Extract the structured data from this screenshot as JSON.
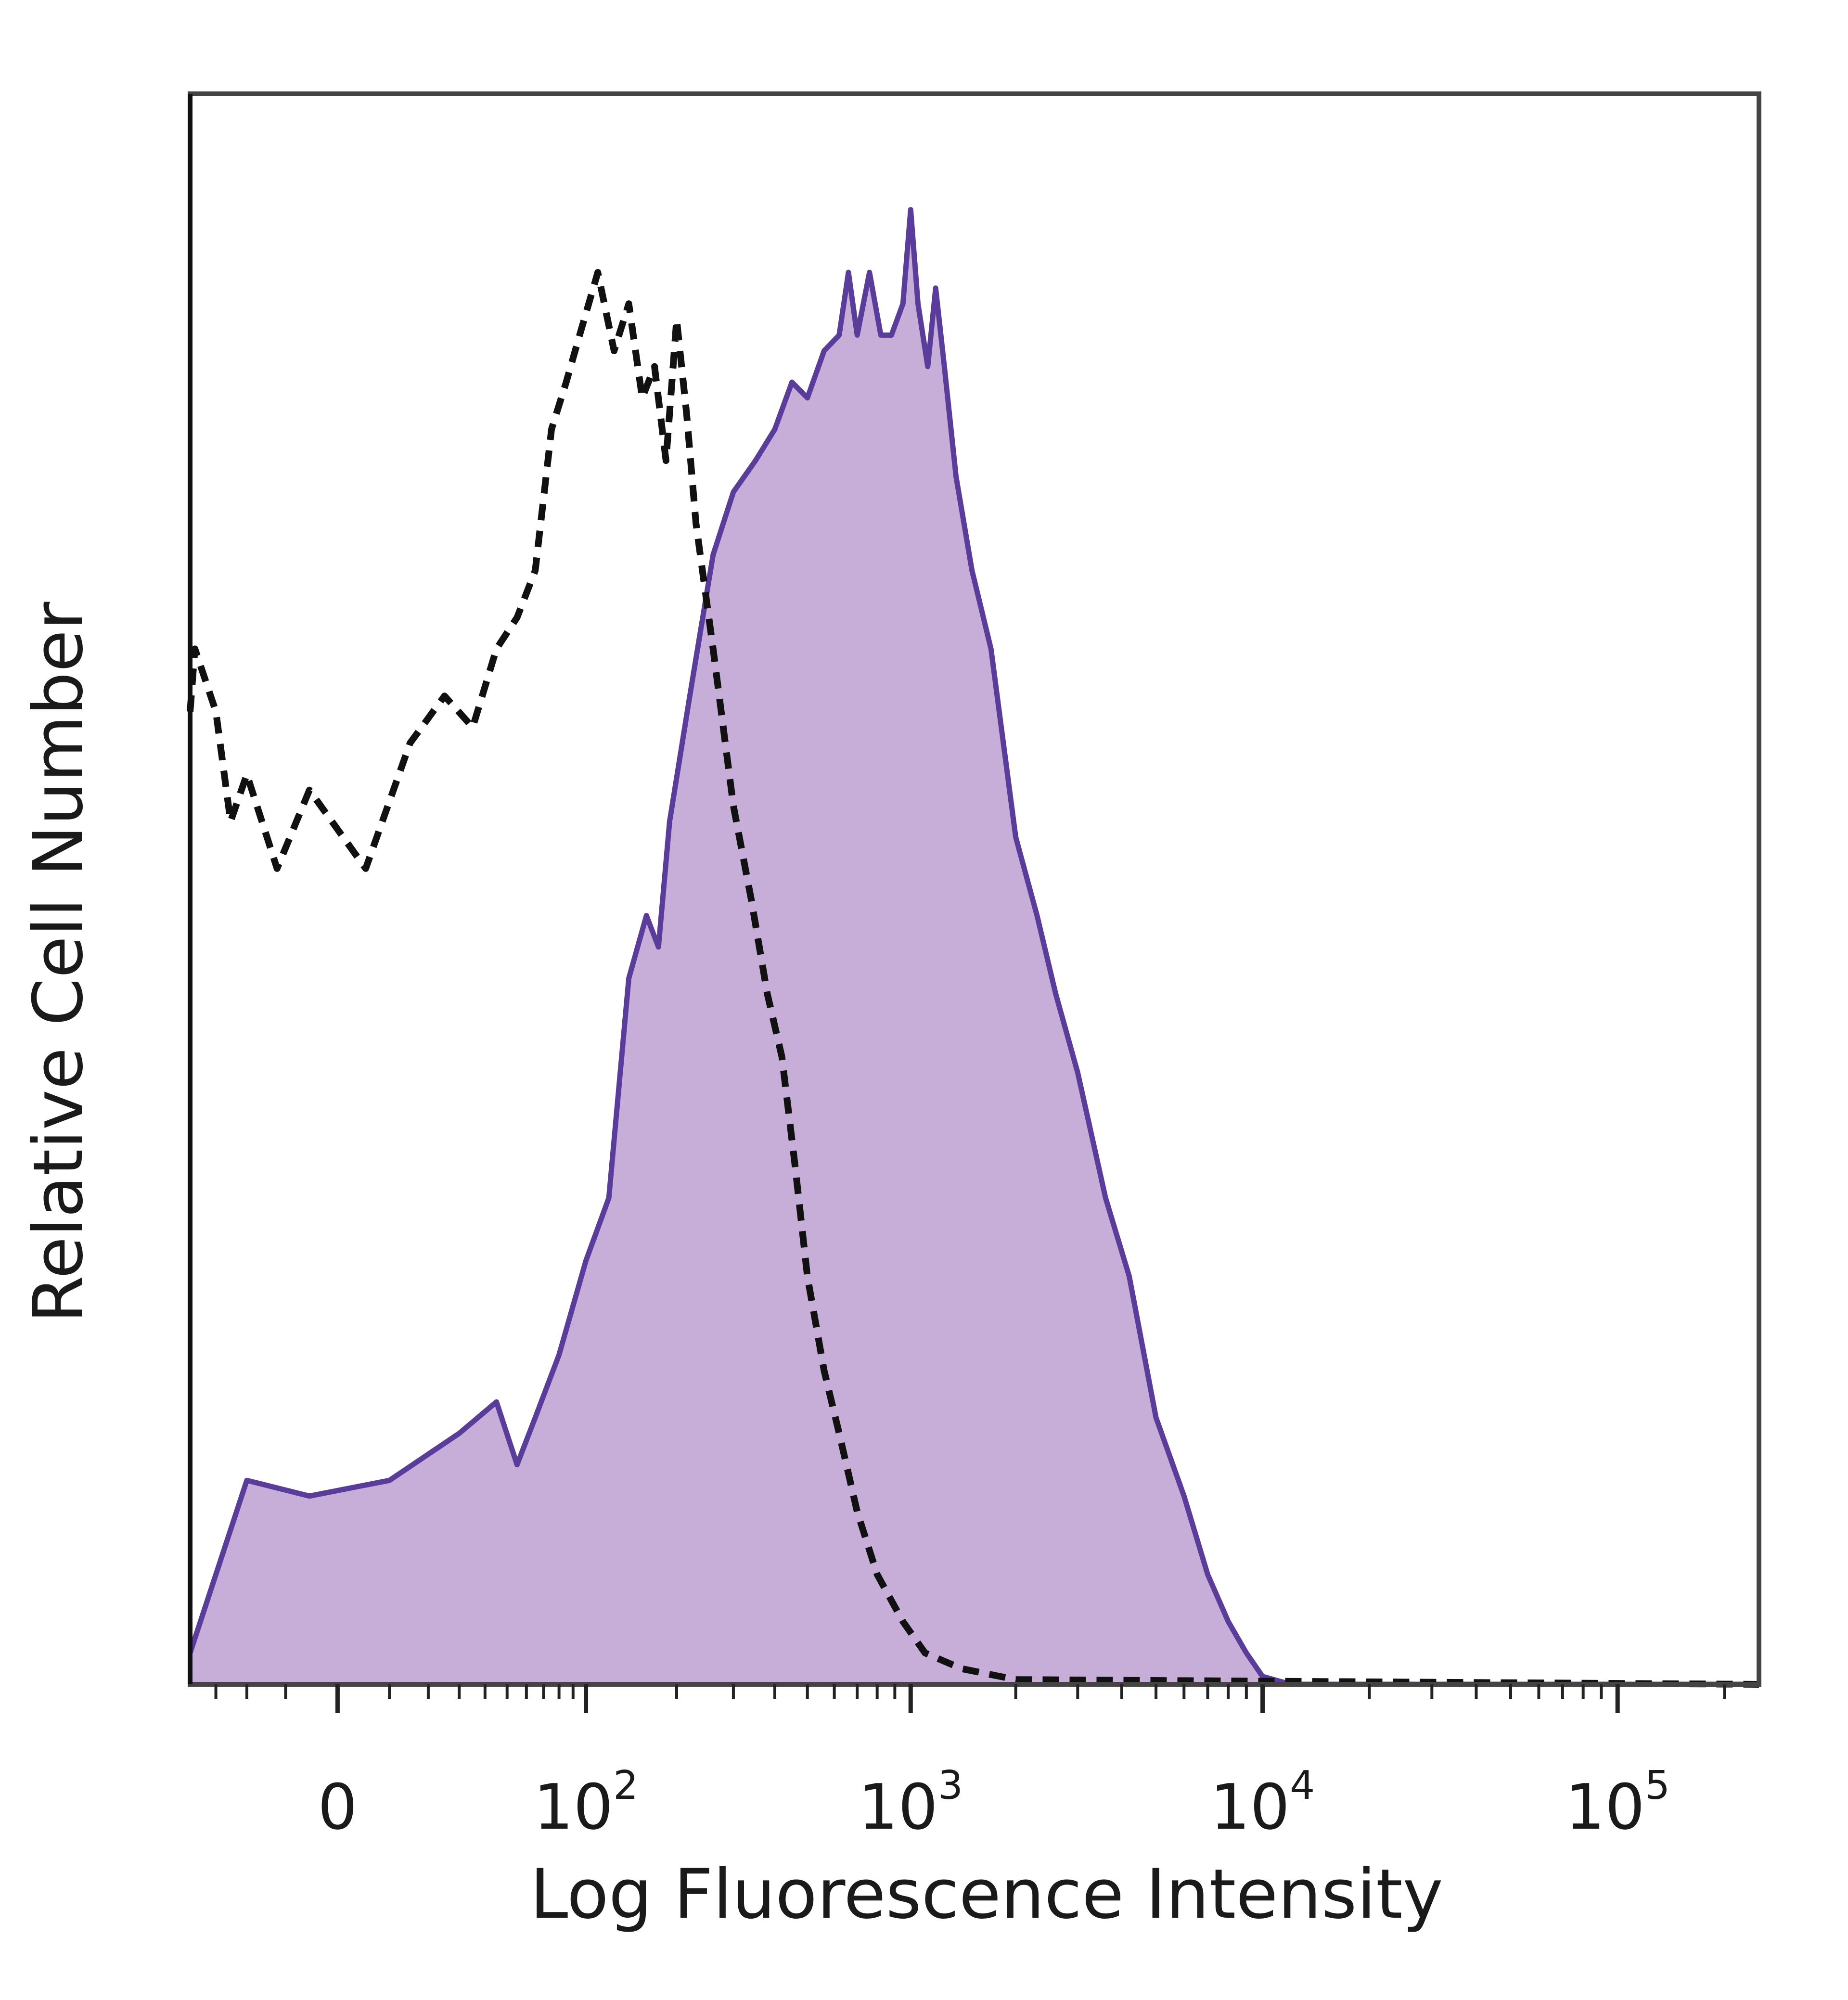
{
  "chart_data": {
    "type": "area",
    "title": "",
    "xlabel": "Log Fluorescence Intensity",
    "ylabel": "Relative Cell Number",
    "x_scale": "biexponential",
    "x_ticks": [
      {
        "value": 0,
        "label": "0"
      },
      {
        "value": 100,
        "label": "10",
        "exp": "2"
      },
      {
        "value": 1000,
        "label": "10",
        "exp": "3"
      },
      {
        "value": 10000,
        "label": "10",
        "exp": "4"
      },
      {
        "value": 100000,
        "label": "10",
        "exp": "5"
      }
    ],
    "xlim": [
      -40,
      250000
    ],
    "ylim": [
      0,
      100
    ],
    "y_tick_labels": false,
    "grid": false,
    "colors": {
      "stained_fill": "#c6aed9",
      "stained_line": "#5a3d9a",
      "control_line": "#111111",
      "frame": "#444444"
    },
    "series": [
      {
        "style": "filled-solid",
        "points": [
          [
            -40,
            2
          ],
          [
            -20,
            13
          ],
          [
            -5,
            12
          ],
          [
            10,
            13
          ],
          [
            30,
            16
          ],
          [
            45,
            18
          ],
          [
            55,
            14
          ],
          [
            65,
            17
          ],
          [
            80,
            21
          ],
          [
            100,
            27
          ],
          [
            120,
            31
          ],
          [
            140,
            45
          ],
          [
            160,
            49
          ],
          [
            175,
            47
          ],
          [
            190,
            55
          ],
          [
            220,
            63
          ],
          [
            260,
            72
          ],
          [
            300,
            76
          ],
          [
            350,
            78
          ],
          [
            400,
            80
          ],
          [
            450,
            83
          ],
          [
            500,
            82
          ],
          [
            560,
            85
          ],
          [
            620,
            86
          ],
          [
            660,
            90
          ],
          [
            700,
            86
          ],
          [
            760,
            90
          ],
          [
            820,
            86
          ],
          [
            880,
            86
          ],
          [
            950,
            88
          ],
          [
            1000,
            94
          ],
          [
            1050,
            88
          ],
          [
            1120,
            84
          ],
          [
            1180,
            89
          ],
          [
            1250,
            84
          ],
          [
            1350,
            77
          ],
          [
            1500,
            71
          ],
          [
            1700,
            66
          ],
          [
            2000,
            54
          ],
          [
            2300,
            49
          ],
          [
            2600,
            44
          ],
          [
            3000,
            39
          ],
          [
            3600,
            31
          ],
          [
            4200,
            26
          ],
          [
            5000,
            17
          ],
          [
            6000,
            12
          ],
          [
            7000,
            7
          ],
          [
            8000,
            4
          ],
          [
            9000,
            2
          ],
          [
            10000,
            0.5
          ],
          [
            12000,
            0
          ],
          [
            250000,
            0
          ]
        ]
      },
      {
        "style": "dashed",
        "points": [
          [
            -40,
            62
          ],
          [
            -38,
            66
          ],
          [
            -30,
            62
          ],
          [
            -25,
            55
          ],
          [
            -20,
            58
          ],
          [
            -12,
            52
          ],
          [
            -5,
            57
          ],
          [
            5,
            52
          ],
          [
            15,
            60
          ],
          [
            25,
            63
          ],
          [
            35,
            61
          ],
          [
            45,
            66
          ],
          [
            55,
            68
          ],
          [
            65,
            71
          ],
          [
            75,
            80
          ],
          [
            85,
            83
          ],
          [
            95,
            86
          ],
          [
            110,
            90
          ],
          [
            125,
            85
          ],
          [
            140,
            88
          ],
          [
            155,
            82
          ],
          [
            170,
            84
          ],
          [
            185,
            78
          ],
          [
            200,
            87
          ],
          [
            215,
            81
          ],
          [
            230,
            74
          ],
          [
            260,
            66
          ],
          [
            300,
            56
          ],
          [
            340,
            50
          ],
          [
            380,
            44
          ],
          [
            420,
            40
          ],
          [
            460,
            33
          ],
          [
            500,
            26
          ],
          [
            560,
            20
          ],
          [
            620,
            16
          ],
          [
            700,
            11
          ],
          [
            800,
            7
          ],
          [
            950,
            4
          ],
          [
            1100,
            2
          ],
          [
            1400,
            1
          ],
          [
            2000,
            0.3
          ],
          [
            250000,
            0
          ]
        ]
      }
    ]
  }
}
